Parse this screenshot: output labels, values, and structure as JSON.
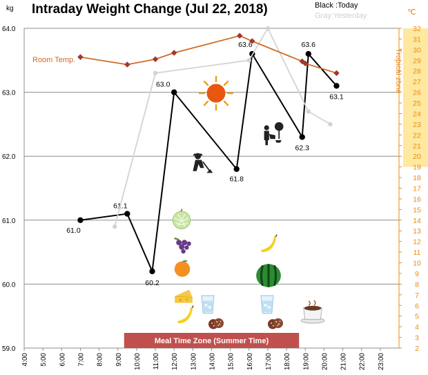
{
  "title": "Intraday Weight Change (Jul 22, 2018)",
  "legend": {
    "today": "Black :Today",
    "yesterday": "Gray:Yesterday"
  },
  "colors": {
    "today": "#000000",
    "yesterday": "#d3d3d3",
    "room_temp": "#d06a20",
    "room_temp_marker": "#a0392c",
    "tropical_zone": "#ffe8a0",
    "right_axis": "#e88a1a",
    "meal_zone": "#c0504d"
  },
  "icons": [
    "sun-icon",
    "gardener-icon",
    "watering-icon",
    "melon-icon",
    "grapes-icon",
    "orange-icon",
    "cheese-icon",
    "banana-icon",
    "water-glass-icon",
    "cookies-icon",
    "watermelon-icon",
    "coffee-icon"
  ],
  "chart_data": {
    "type": "line",
    "left_axis": {
      "unit_label": "kg",
      "ylim": [
        59.0,
        64.0
      ],
      "ticks": [
        "59.0",
        "60.0",
        "61.0",
        "62.0",
        "63.0",
        "64.0"
      ]
    },
    "right_axis": {
      "unit_label": "℃",
      "ylim": [
        2,
        32
      ],
      "ticks": [
        "2",
        "3",
        "4",
        "5",
        "6",
        "7",
        "8",
        "9",
        "10",
        "11",
        "12",
        "13",
        "14",
        "15",
        "16",
        "17",
        "18",
        "19",
        "20",
        "21",
        "22",
        "23",
        "24",
        "25",
        "26",
        "27",
        "28",
        "29",
        "30",
        "31",
        "32"
      ],
      "band_label": "Tropical zone",
      "band_range": [
        19,
        32
      ]
    },
    "x_axis": {
      "xlim": [
        "4:00",
        "24:00"
      ],
      "ticks": [
        "4:00",
        "5:00",
        "6:00",
        "7:00",
        "8:00",
        "9:00",
        "10:00",
        "11:00",
        "12:00",
        "13:00",
        "14:00",
        "15:00",
        "16:00",
        "17:00",
        "18:00",
        "19:00",
        "20:00",
        "21:00",
        "22:00",
        "23:00"
      ]
    },
    "grid": true,
    "series": [
      {
        "style": "today",
        "x": [
          "7:00",
          "9:30",
          "10:50",
          "12:00",
          "15:20",
          "16:10",
          "18:50",
          "19:10",
          "20:40"
        ],
        "y": [
          61.0,
          61.1,
          60.2,
          63.0,
          61.8,
          63.6,
          62.3,
          63.6,
          63.1
        ],
        "point_labels": [
          "61.0",
          "61.1",
          "60.2",
          "63.0",
          "61.8",
          "63.6",
          "62.3",
          "63.6",
          "63.1"
        ]
      },
      {
        "style": "yesterday",
        "x": [
          "8:50",
          "11:00",
          "16:00",
          "17:00",
          "19:10",
          "20:20"
        ],
        "y": [
          60.9,
          63.3,
          63.5,
          64.0,
          62.7,
          62.5
        ]
      },
      {
        "name": "Room Temp.",
        "style": "room_temp",
        "axis": "right",
        "x": [
          "7:00",
          "9:30",
          "11:00",
          "12:00",
          "15:30",
          "16:10",
          "18:50",
          "19:00",
          "20:40"
        ],
        "y": [
          29.3,
          28.6,
          29.1,
          29.7,
          31.3,
          30.8,
          28.9,
          28.7,
          27.8
        ]
      }
    ],
    "annotation": {
      "label": "Meal Time Zone  (Summer Time)",
      "x_range": [
        "9:20",
        "18:40"
      ]
    }
  }
}
